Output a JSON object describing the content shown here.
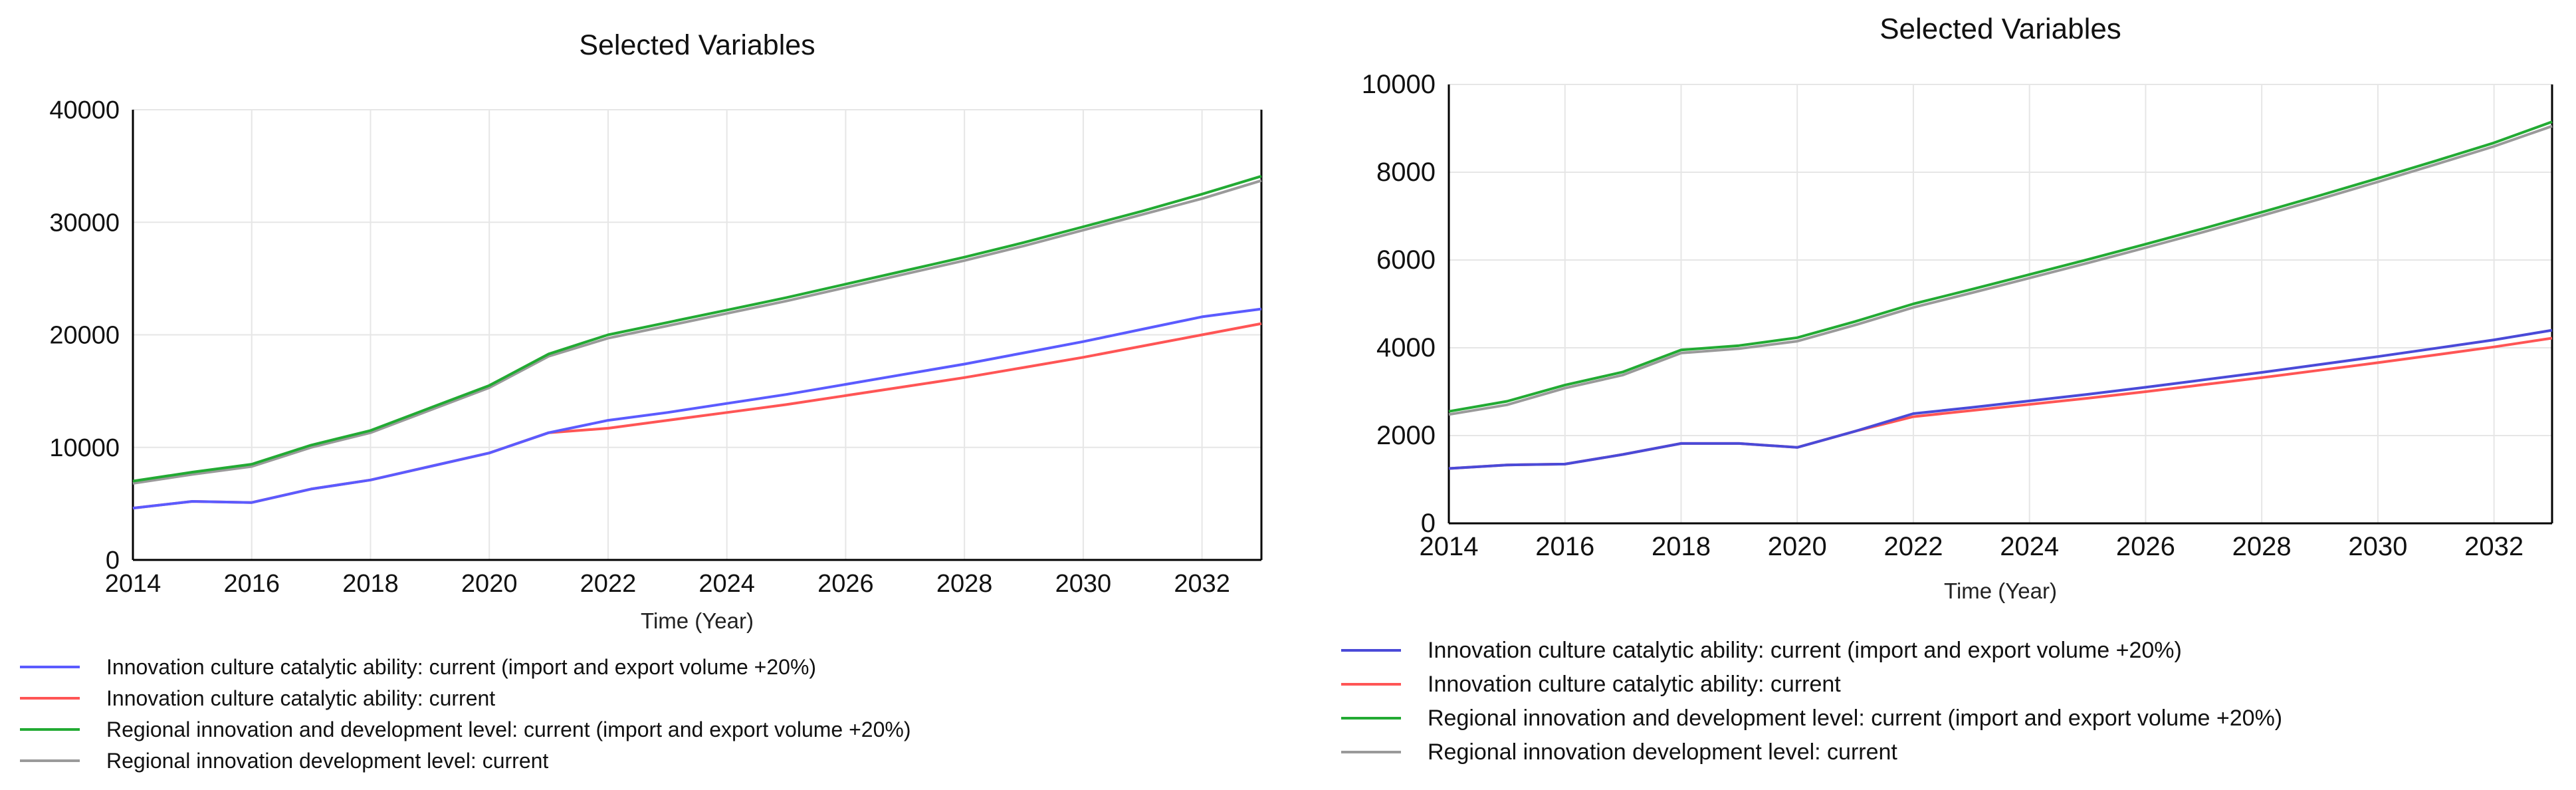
{
  "chart_data": [
    {
      "type": "line",
      "title": "Selected Variables",
      "xlabel": "Time (Year)",
      "ylabel": "",
      "xlim": [
        2014,
        2033
      ],
      "ylim": [
        0,
        40000
      ],
      "x_ticks": [
        "2014",
        "2016",
        "2018",
        "2020",
        "2022",
        "2024",
        "2026",
        "2028",
        "2030",
        "2032"
      ],
      "y_ticks": [
        "0",
        "10000",
        "20000",
        "30000",
        "40000"
      ],
      "grid": true,
      "legend_position": "bottom-left",
      "x": [
        2014,
        2015,
        2016,
        2017,
        2018,
        2019,
        2020,
        2021,
        2022,
        2023,
        2024,
        2025,
        2026,
        2027,
        2028,
        2029,
        2030,
        2031,
        2032,
        2033
      ],
      "series": [
        {
          "name": "Innovation culture catalytic ability: current (import and export volume +20%)",
          "color": "#5b5bff",
          "values": [
            4600,
            5200,
            5100,
            6300,
            7100,
            8300,
            9500,
            11300,
            12400,
            13100,
            13900,
            14700,
            15600,
            16500,
            17400,
            18400,
            19400,
            20500,
            21600,
            22300
          ]
        },
        {
          "name": "Innovation culture catalytic ability: current",
          "color": "#ff5555",
          "values": [
            4600,
            5200,
            5100,
            6300,
            7100,
            8300,
            9500,
            11300,
            11700,
            12400,
            13100,
            13800,
            14600,
            15400,
            16200,
            17100,
            18000,
            19000,
            20000,
            21000
          ]
        },
        {
          "name": "Regional innovation and development level: current (import and export volume +20%)",
          "color": "#22aa33",
          "values": [
            7000,
            7800,
            8500,
            10200,
            11500,
            13500,
            15500,
            18300,
            20000,
            21100,
            22200,
            23300,
            24500,
            25700,
            26900,
            28200,
            29600,
            31000,
            32500,
            34100
          ]
        },
        {
          "name": "Regional innovation development level: current",
          "color": "#9a9a9a",
          "values": [
            6800,
            7600,
            8300,
            10000,
            11300,
            13300,
            15300,
            18100,
            19700,
            20800,
            21900,
            23000,
            24200,
            25400,
            26600,
            27900,
            29300,
            30700,
            32100,
            33700
          ]
        }
      ]
    },
    {
      "type": "line",
      "title": "Selected Variables",
      "xlabel": "Time (Year)",
      "ylabel": "",
      "xlim": [
        2014,
        2033
      ],
      "ylim": [
        0,
        10000
      ],
      "x_ticks": [
        "2014",
        "2016",
        "2018",
        "2020",
        "2022",
        "2024",
        "2026",
        "2028",
        "2030",
        "2032"
      ],
      "y_ticks": [
        "0",
        "2000",
        "4000",
        "6000",
        "8000",
        "10000"
      ],
      "grid": true,
      "legend_position": "bottom-left",
      "x": [
        2014,
        2015,
        2016,
        2017,
        2018,
        2019,
        2020,
        2021,
        2022,
        2023,
        2024,
        2025,
        2026,
        2027,
        2028,
        2029,
        2030,
        2031,
        2032,
        2033
      ],
      "series": [
        {
          "name": "Innovation culture catalytic ability: current (import and export volume +20%)",
          "color": "#4a4ad8",
          "values": [
            1250,
            1330,
            1350,
            1570,
            1820,
            1820,
            1730,
            2100,
            2500,
            2640,
            2790,
            2940,
            3100,
            3270,
            3440,
            3620,
            3800,
            3990,
            4180,
            4400
          ]
        },
        {
          "name": "Innovation culture catalytic ability: current",
          "color": "#ff5555",
          "values": [
            1250,
            1330,
            1350,
            1570,
            1820,
            1820,
            1730,
            2100,
            2430,
            2570,
            2710,
            2850,
            3000,
            3160,
            3320,
            3490,
            3660,
            3840,
            4020,
            4220
          ]
        },
        {
          "name": "Regional innovation and development level: current (import and export volume +20%)",
          "color": "#22aa33",
          "values": [
            2550,
            2780,
            3150,
            3450,
            3950,
            4050,
            4230,
            4600,
            5000,
            5330,
            5670,
            6010,
            6360,
            6720,
            7090,
            7470,
            7860,
            8260,
            8670,
            9150
          ]
        },
        {
          "name": "Regional innovation development level: current",
          "color": "#9a9a9a",
          "values": [
            2480,
            2700,
            3080,
            3380,
            3880,
            3980,
            4150,
            4520,
            4920,
            5250,
            5590,
            5930,
            6280,
            6640,
            7010,
            7390,
            7780,
            8180,
            8590,
            9050
          ]
        }
      ]
    }
  ]
}
